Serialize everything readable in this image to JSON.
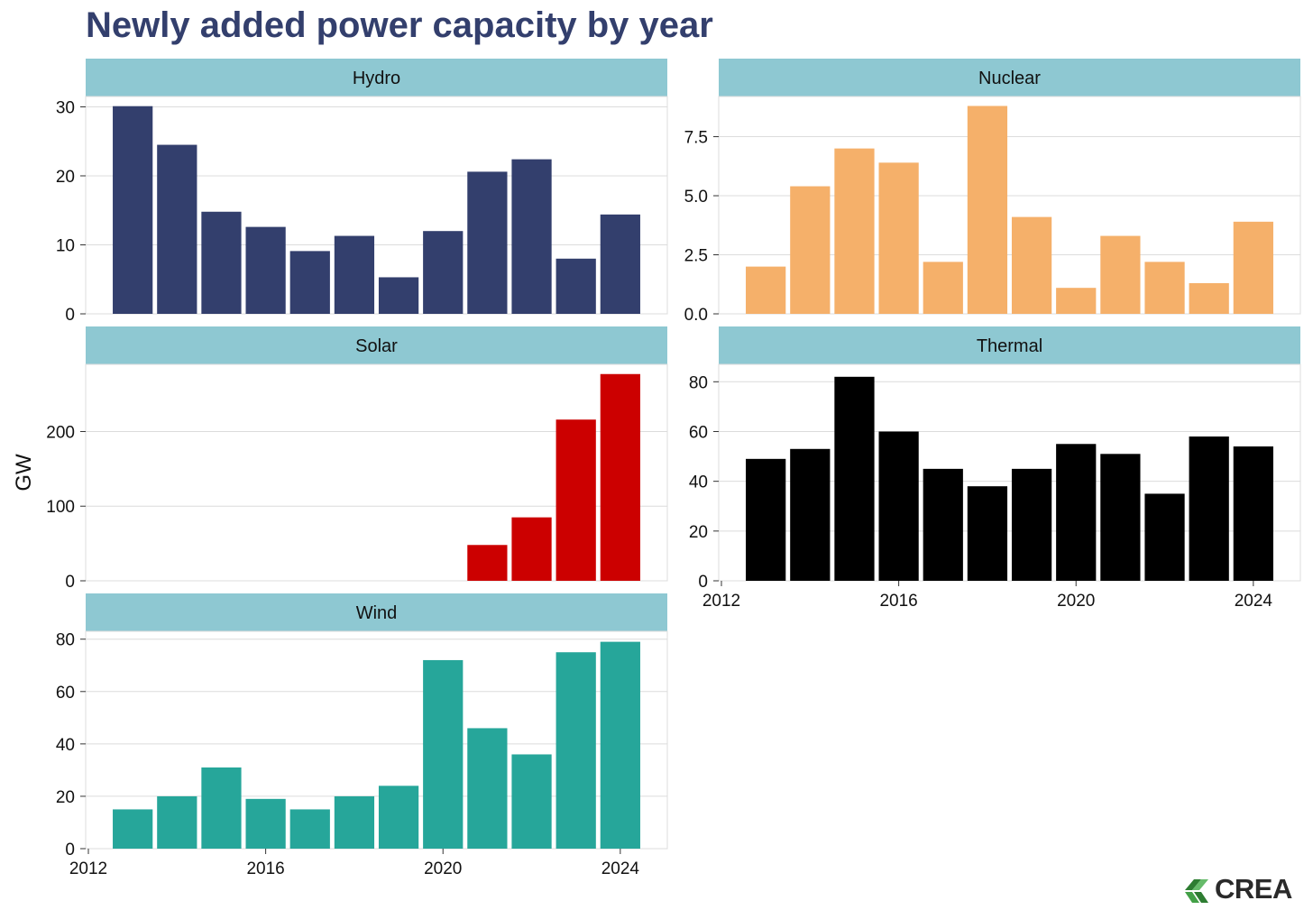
{
  "title": "Newly added power capacity by year",
  "logo_text": "CREA",
  "chart_data": {
    "type": "bar",
    "title": "Newly added power capacity by year",
    "ylabel": "GW",
    "xlabel": "",
    "x_ticks": [
      2012,
      2016,
      2020,
      2024
    ],
    "grid": true,
    "panels": [
      {
        "name": "Hydro",
        "color": "#333f6d",
        "ylim": [
          0,
          31.5
        ],
        "y_ticks": [
          {
            "value": 0,
            "label": "0"
          },
          {
            "value": 10,
            "label": "10"
          },
          {
            "value": 20,
            "label": "20"
          },
          {
            "value": 30,
            "label": "30"
          }
        ],
        "x": [
          2013,
          2014,
          2015,
          2016,
          2017,
          2018,
          2019,
          2020,
          2021,
          2022,
          2023,
          2024
        ],
        "values": [
          30.1,
          24.5,
          14.8,
          12.6,
          9.1,
          11.3,
          5.3,
          12.0,
          20.6,
          22.4,
          8.0,
          14.4
        ]
      },
      {
        "name": "Nuclear",
        "color": "#f5b06a",
        "ylim": [
          0,
          9.2
        ],
        "y_ticks": [
          {
            "value": 0,
            "label": "0.0"
          },
          {
            "value": 2.5,
            "label": "2.5"
          },
          {
            "value": 5,
            "label": "5.0"
          },
          {
            "value": 7.5,
            "label": "7.5"
          }
        ],
        "x": [
          2013,
          2014,
          2015,
          2016,
          2017,
          2018,
          2019,
          2020,
          2021,
          2022,
          2023,
          2024
        ],
        "values": [
          2.0,
          5.4,
          7.0,
          6.4,
          2.2,
          8.8,
          4.1,
          1.1,
          3.3,
          2.2,
          1.3,
          3.9
        ]
      },
      {
        "name": "Solar",
        "color": "#cc0000",
        "ylim": [
          0,
          290
        ],
        "y_ticks": [
          {
            "value": 0,
            "label": "0"
          },
          {
            "value": 100,
            "label": "100"
          },
          {
            "value": 200,
            "label": "200"
          }
        ],
        "x": [
          2021,
          2022,
          2023,
          2024
        ],
        "values": [
          48,
          85,
          216,
          277
        ]
      },
      {
        "name": "Thermal",
        "color": "#000000",
        "ylim": [
          0,
          87
        ],
        "y_ticks": [
          {
            "value": 0,
            "label": "0"
          },
          {
            "value": 20,
            "label": "20"
          },
          {
            "value": 40,
            "label": "40"
          },
          {
            "value": 60,
            "label": "60"
          },
          {
            "value": 80,
            "label": "80"
          }
        ],
        "x": [
          2013,
          2014,
          2015,
          2016,
          2017,
          2018,
          2019,
          2020,
          2021,
          2022,
          2023,
          2024
        ],
        "values": [
          49,
          53,
          82,
          60,
          45,
          38,
          45,
          55,
          51,
          35,
          58,
          54
        ]
      },
      {
        "name": "Wind",
        "color": "#26a69a",
        "ylim": [
          0,
          83
        ],
        "y_ticks": [
          {
            "value": 0,
            "label": "0"
          },
          {
            "value": 20,
            "label": "20"
          },
          {
            "value": 40,
            "label": "40"
          },
          {
            "value": 60,
            "label": "60"
          },
          {
            "value": 80,
            "label": "80"
          }
        ],
        "x": [
          2013,
          2014,
          2015,
          2016,
          2017,
          2018,
          2019,
          2020,
          2021,
          2022,
          2023,
          2024
        ],
        "values": [
          15,
          20,
          31,
          19,
          15,
          20,
          24,
          72,
          46,
          36,
          75,
          79
        ]
      }
    ]
  }
}
